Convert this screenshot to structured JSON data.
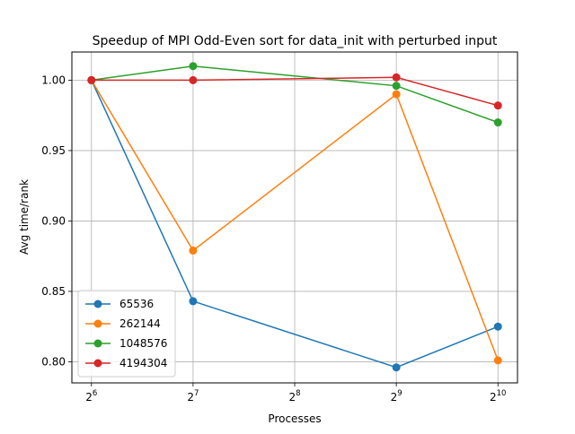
{
  "chart_data": {
    "type": "line",
    "title": "Speedup of MPI Odd-Even sort for data_init with perturbed input",
    "xlabel": "Processes",
    "ylabel": "Avg time/rank",
    "x_scale": "log2",
    "x": [
      64,
      128,
      256,
      512,
      1024
    ],
    "x_ticks": [
      {
        "base": "2",
        "exp": "6"
      },
      {
        "base": "2",
        "exp": "7"
      },
      {
        "base": "2",
        "exp": "8"
      },
      {
        "base": "2",
        "exp": "9"
      },
      {
        "base": "2",
        "exp": "10"
      }
    ],
    "xlim": [
      56,
      1170
    ],
    "ylim": [
      0.785,
      1.02
    ],
    "y_ticks": [
      "0.80",
      "0.85",
      "0.90",
      "0.95",
      "1.00"
    ],
    "grid": true,
    "legend_position": "lower-left",
    "series": [
      {
        "name": "65536",
        "color": "#1f77b4",
        "x": [
          64,
          128,
          512,
          1024
        ],
        "y": [
          1.0,
          0.843,
          0.796,
          0.825
        ]
      },
      {
        "name": "262144",
        "color": "#ff7f0e",
        "x": [
          64,
          128,
          512,
          1024
        ],
        "y": [
          1.0,
          0.879,
          0.99,
          0.801
        ]
      },
      {
        "name": "1048576",
        "color": "#2ca02c",
        "x": [
          64,
          128,
          512,
          1024
        ],
        "y": [
          1.0,
          1.01,
          0.996,
          0.97
        ]
      },
      {
        "name": "4194304",
        "color": "#d62728",
        "x": [
          64,
          128,
          512,
          1024
        ],
        "y": [
          1.0,
          1.0,
          1.002,
          0.982
        ]
      }
    ]
  }
}
